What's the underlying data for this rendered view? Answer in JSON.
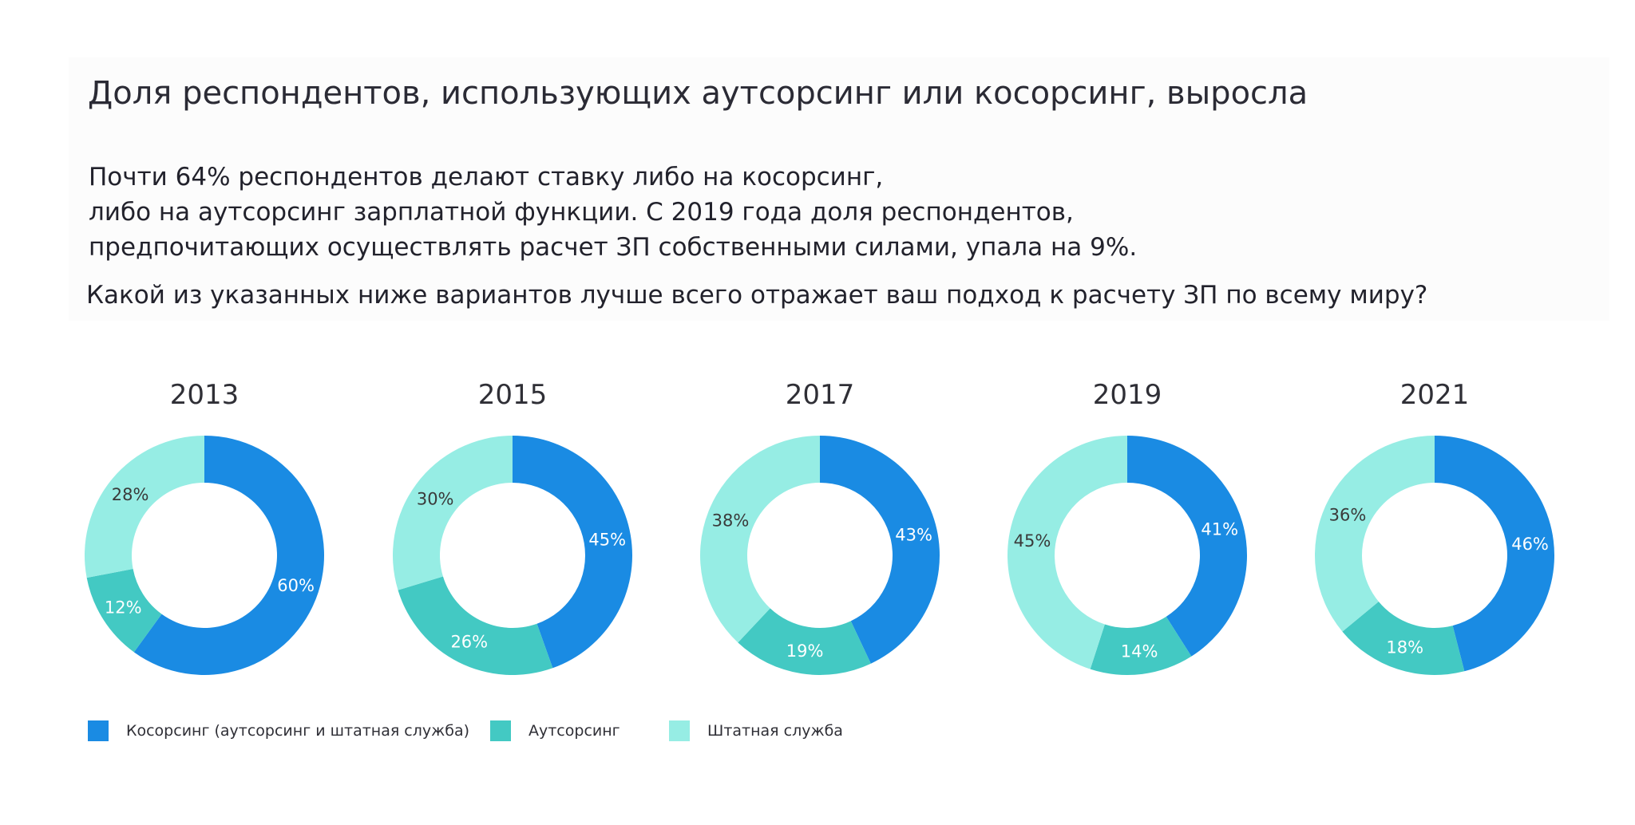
{
  "header": {
    "title": "Доля респондентов, использующих аутсорсинг или косорсинг, выросла",
    "lead_lines": [
      "Почти 64% респондентов делают ставку либо на косорсинг,",
      "либо на аутсорсинг зарплатной функции. С 2019  года доля респондентов,",
      "предпочитающих осуществлять расчет ЗП собственными силами, упала на 9%."
    ],
    "question": "Какой из указанных ниже вариантов лучше всего отражает ваш подход к расчету ЗП по всему миру?"
  },
  "colors": {
    "cosourcing": "#1a8be3",
    "outsourcing": "#43c9c3",
    "inhouse": "#96ede4"
  },
  "chart_data": {
    "type": "donut",
    "series_names": [
      "Косорсинг (аутсорсинг и штатная служба)",
      "Аутсорсинг",
      "Штатная служба"
    ],
    "charts": [
      {
        "title": "2013",
        "values": [
          60,
          12,
          28
        ],
        "labels": [
          "60%",
          "12%",
          "28%"
        ]
      },
      {
        "title": "2015",
        "values": [
          45,
          26,
          30
        ],
        "labels": [
          "45%",
          "26%",
          "30%"
        ]
      },
      {
        "title": "2017",
        "values": [
          43,
          19,
          38
        ],
        "labels": [
          "43%",
          "19%",
          "38%"
        ]
      },
      {
        "title": "2019",
        "values": [
          41,
          14,
          45
        ],
        "labels": [
          "41%",
          "14%",
          "45%"
        ]
      },
      {
        "title": "2021",
        "values": [
          46,
          18,
          36
        ],
        "labels": [
          "46%",
          "18%",
          "36%"
        ]
      }
    ],
    "legend": {
      "position": "bottom-left",
      "items": [
        {
          "label": "Косорсинг (аутсорсинг и штатная служба)",
          "color": "#1a8be3"
        },
        {
          "label": "Аутсорсинг",
          "color": "#43c9c3"
        },
        {
          "label": "Штатная служба",
          "color": "#96ede4"
        }
      ]
    }
  }
}
